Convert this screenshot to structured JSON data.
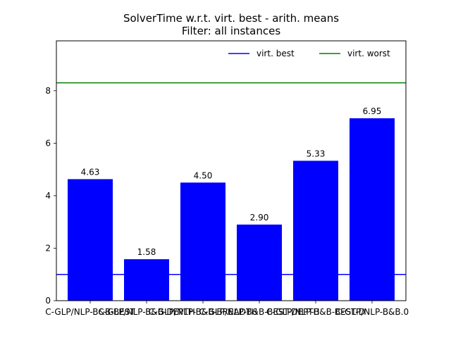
{
  "chart_data": {
    "type": "bar",
    "title": "SolverTime w.r.t. virt. best - arith. means",
    "subtitle": "Filter: all instances",
    "xlabel": "",
    "ylabel": "",
    "ylim": [
      0,
      9.9
    ],
    "yticks": [
      0,
      2,
      4,
      6,
      8
    ],
    "grid": false,
    "legend_position": "top-right",
    "bar_color": "#0000ff",
    "categories": [
      "C-GLP/NLP-B&B-BEST",
      "C-GLP/NLP-B&B-DEPTH",
      "C-GLP/NLP-B&B-BREADTH",
      "C-GLP/NLP-B&B-BEST-DEPTH",
      "C-GLP/NLP-B&B-BEST-D",
      "C-GLP/NLP-B&B.0"
    ],
    "values": [
      4.63,
      1.58,
      4.5,
      2.9,
      5.33,
      6.95
    ],
    "value_labels": [
      "4.63",
      "1.58",
      "4.50",
      "2.90",
      "5.33",
      "6.95"
    ],
    "reference_lines": [
      {
        "name": "virt. best",
        "value": 1.0,
        "color": "#0000ff"
      },
      {
        "name": "virt. worst",
        "value": 8.3,
        "color": "#008000"
      }
    ]
  }
}
